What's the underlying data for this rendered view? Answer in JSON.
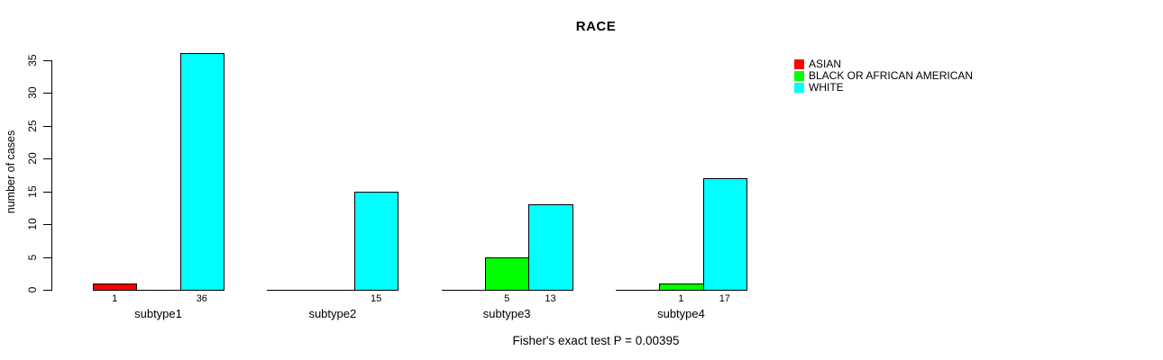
{
  "chart_data": {
    "type": "bar",
    "title": "RACE",
    "xlabel": "",
    "ylabel": "number of cases",
    "categories": [
      "subtype1",
      "subtype2",
      "subtype3",
      "subtype4"
    ],
    "series": [
      {
        "name": "ASIAN",
        "color": "#FF0000",
        "values": [
          1,
          0,
          0,
          0
        ]
      },
      {
        "name": "BLACK OR AFRICAN AMERICAN",
        "color": "#00FF00",
        "values": [
          0,
          0,
          5,
          1
        ]
      },
      {
        "name": "WHITE",
        "color": "#00FFFF",
        "values": [
          36,
          15,
          13,
          17
        ]
      }
    ],
    "yticks": [
      0,
      5,
      10,
      15,
      20,
      25,
      30,
      35
    ],
    "ylim": [
      0,
      36
    ],
    "grid": false,
    "legend_position": "top-right",
    "value_label_rule": "shown below each non-zero bar",
    "annotation": "Fisher's exact test P = 0.00395"
  },
  "colors": {
    "background": "#FFFFFF",
    "axis": "#000000",
    "text": "#000000"
  }
}
